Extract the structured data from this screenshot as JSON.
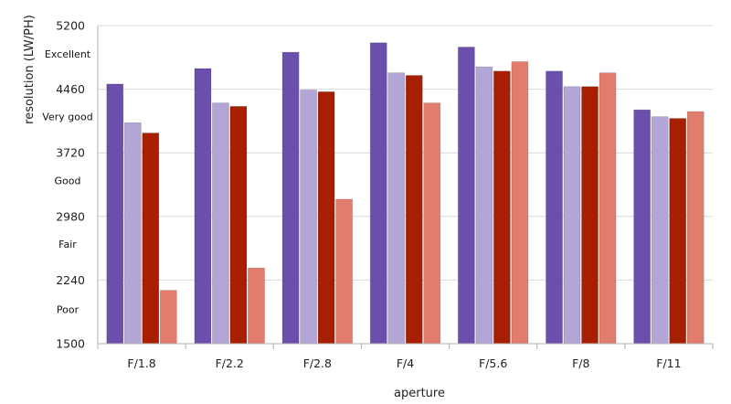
{
  "chart_data": {
    "type": "bar",
    "xlabel": "aperture",
    "ylabel": "resolution (LW/PH)",
    "categories": [
      "F/1.8",
      "F/2.2",
      "F/2.8",
      "F/4",
      "F/5.6",
      "F/8",
      "F/11"
    ],
    "ylim": [
      1500,
      5200
    ],
    "yticks": [
      1500,
      2240,
      2980,
      3720,
      4460,
      5200
    ],
    "grid": {
      "horizontal": true,
      "color": "#d9d9d9"
    },
    "legend": "none",
    "quality_bands": [
      {
        "label": "Excellent",
        "value": 4870
      },
      {
        "label": "Very good",
        "value": 4140
      },
      {
        "label": "Good",
        "value": 3400
      },
      {
        "label": "Fair",
        "value": 2660
      },
      {
        "label": "Poor",
        "value": 1900
      }
    ],
    "series": [
      {
        "color": "#6a4fac",
        "values": [
          4520,
          4700,
          4890,
          5000,
          4950,
          4670,
          4220
        ]
      },
      {
        "color": "#b3a6d6",
        "values": [
          4070,
          4300,
          4450,
          4650,
          4720,
          4490,
          4140
        ]
      },
      {
        "color": "#a81e00",
        "values": [
          3950,
          4260,
          4430,
          4620,
          4670,
          4490,
          4120
        ]
      },
      {
        "color": "#e27c6d",
        "values": [
          2120,
          2380,
          3180,
          4300,
          4780,
          4650,
          4200
        ]
      }
    ]
  }
}
